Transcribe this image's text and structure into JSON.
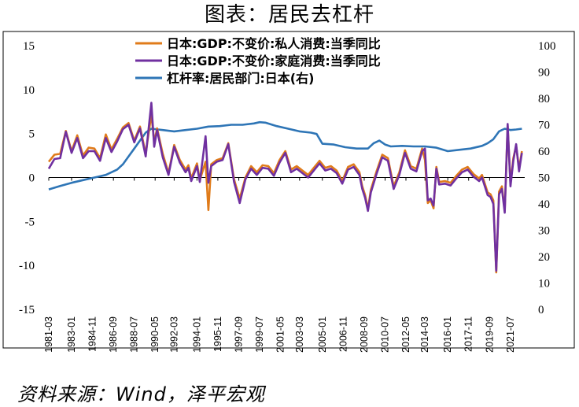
{
  "title": "图表：居民去杠杆",
  "source": "资料来源：Wind，泽平宏观",
  "chart_data": {
    "type": "line",
    "x_tick_labels": [
      "1981-03",
      "1983-01",
      "1984-11",
      "1986-09",
      "1988-07",
      "1990-05",
      "1992-03",
      "1994-01",
      "1995-11",
      "1997-09",
      "1999-07",
      "2001-05",
      "2003-03",
      "2005-01",
      "2006-11",
      "2008-09",
      "2010-07",
      "2012-05",
      "2014-03",
      "2016-01",
      "2017-11",
      "2019-09",
      "2021-07"
    ],
    "x_tick_years": [
      1981.0,
      1983.0,
      1984.83,
      1986.67,
      1988.5,
      1990.33,
      1992.0,
      1994.0,
      1995.83,
      1997.67,
      1999.5,
      2001.33,
      2003.0,
      2005.0,
      2006.83,
      2008.67,
      2010.5,
      2012.33,
      2014.0,
      2016.0,
      2017.83,
      2019.67,
      2021.5
    ],
    "x_range": [
      1981.0,
      2022.75
    ],
    "left_axis": {
      "ylim": [
        -15,
        15
      ],
      "ticks": [
        -15,
        -10,
        -5,
        0,
        5,
        10,
        15
      ]
    },
    "right_axis": {
      "ylim": [
        0,
        100
      ],
      "ticks": [
        0,
        10,
        20,
        30,
        40,
        50,
        60,
        70,
        80,
        90,
        100
      ]
    },
    "legend_placement": "top-center",
    "series": [
      {
        "name": "日本:GDP:不变价:私人消费:当季同比",
        "axis": "left",
        "color": "#E07B1A",
        "points": [
          [
            1981.0,
            1.8
          ],
          [
            1981.5,
            2.6
          ],
          [
            1982.0,
            2.7
          ],
          [
            1982.5,
            5.3
          ],
          [
            1983.0,
            3.0
          ],
          [
            1983.5,
            4.8
          ],
          [
            1984.0,
            2.5
          ],
          [
            1984.5,
            3.4
          ],
          [
            1985.0,
            3.3
          ],
          [
            1985.5,
            2.2
          ],
          [
            1986.0,
            4.9
          ],
          [
            1986.5,
            3.2
          ],
          [
            1987.0,
            4.4
          ],
          [
            1987.5,
            5.7
          ],
          [
            1988.0,
            6.2
          ],
          [
            1988.5,
            4.2
          ],
          [
            1989.0,
            5.8
          ],
          [
            1989.5,
            2.7
          ],
          [
            1990.0,
            7.2
          ],
          [
            1990.25,
            4.0
          ],
          [
            1990.5,
            5.6
          ],
          [
            1991.0,
            2.7
          ],
          [
            1991.5,
            0.5
          ],
          [
            1992.0,
            3.7
          ],
          [
            1992.5,
            2.0
          ],
          [
            1993.0,
            0.9
          ],
          [
            1993.25,
            1.4
          ],
          [
            1993.5,
            -0.1
          ],
          [
            1994.0,
            1.6
          ],
          [
            1994.25,
            -0.3
          ],
          [
            1994.75,
            1.8
          ],
          [
            1995.0,
            -3.7
          ],
          [
            1995.25,
            1.5
          ],
          [
            1995.75,
            2.0
          ],
          [
            1996.25,
            2.2
          ],
          [
            1996.75,
            3.9
          ],
          [
            1997.25,
            -0.2
          ],
          [
            1997.75,
            -2.4
          ],
          [
            1998.25,
            0.0
          ],
          [
            1998.75,
            1.3
          ],
          [
            1999.25,
            0.6
          ],
          [
            1999.75,
            1.4
          ],
          [
            2000.25,
            1.3
          ],
          [
            2000.75,
            0.5
          ],
          [
            2001.25,
            2.0
          ],
          [
            2001.75,
            3.0
          ],
          [
            2002.25,
            0.9
          ],
          [
            2002.75,
            1.3
          ],
          [
            2003.25,
            0.8
          ],
          [
            2003.75,
            0.3
          ],
          [
            2004.25,
            1.1
          ],
          [
            2004.75,
            1.9
          ],
          [
            2005.25,
            1.1
          ],
          [
            2005.75,
            1.3
          ],
          [
            2006.25,
            0.8
          ],
          [
            2006.75,
            -0.4
          ],
          [
            2007.25,
            1.2
          ],
          [
            2007.75,
            1.5
          ],
          [
            2008.25,
            0.6
          ],
          [
            2008.5,
            -1.0
          ],
          [
            2008.75,
            -2.0
          ],
          [
            2009.0,
            -3.6
          ],
          [
            2009.25,
            -1.4
          ],
          [
            2009.75,
            0.7
          ],
          [
            2010.25,
            2.6
          ],
          [
            2010.75,
            2.2
          ],
          [
            2011.25,
            -1.0
          ],
          [
            2011.75,
            0.6
          ],
          [
            2012.25,
            3.1
          ],
          [
            2012.75,
            1.3
          ],
          [
            2013.25,
            1.0
          ],
          [
            2013.75,
            3.3
          ],
          [
            2014.0,
            2.0
          ],
          [
            2014.25,
            -2.9
          ],
          [
            2014.5,
            -2.6
          ],
          [
            2014.75,
            -3.5
          ],
          [
            2015.0,
            1.2
          ],
          [
            2015.25,
            -0.5
          ],
          [
            2015.75,
            -0.4
          ],
          [
            2016.25,
            -0.6
          ],
          [
            2016.75,
            0.2
          ],
          [
            2017.25,
            0.9
          ],
          [
            2017.75,
            1.2
          ],
          [
            2018.25,
            0.4
          ],
          [
            2018.75,
            -0.1
          ],
          [
            2019.0,
            0.3
          ],
          [
            2019.5,
            -1.7
          ],
          [
            2019.75,
            -1.9
          ],
          [
            2020.0,
            -2.6
          ],
          [
            2020.25,
            -10.8
          ],
          [
            2020.5,
            -1.6
          ],
          [
            2020.75,
            -1.0
          ],
          [
            2021.0,
            -3.8
          ],
          [
            2021.25,
            5.9
          ],
          [
            2021.5,
            -0.7
          ],
          [
            2021.75,
            2.2
          ],
          [
            2022.0,
            3.6
          ],
          [
            2022.25,
            1.0
          ],
          [
            2022.5,
            3.0
          ]
        ]
      },
      {
        "name": "日本:GDP:不变价:家庭消费:当季同比",
        "axis": "left",
        "color": "#7030A0",
        "points": [
          [
            1981.0,
            1.0
          ],
          [
            1981.5,
            2.1
          ],
          [
            1982.0,
            2.2
          ],
          [
            1982.5,
            5.2
          ],
          [
            1983.0,
            2.8
          ],
          [
            1983.5,
            4.5
          ],
          [
            1984.0,
            2.2
          ],
          [
            1984.5,
            3.0
          ],
          [
            1985.0,
            3.0
          ],
          [
            1985.5,
            1.9
          ],
          [
            1986.0,
            4.5
          ],
          [
            1986.5,
            2.9
          ],
          [
            1987.0,
            4.1
          ],
          [
            1987.5,
            5.5
          ],
          [
            1988.0,
            6.0
          ],
          [
            1988.5,
            4.0
          ],
          [
            1989.0,
            5.6
          ],
          [
            1989.5,
            2.4
          ],
          [
            1990.0,
            8.5
          ],
          [
            1990.25,
            3.5
          ],
          [
            1990.5,
            5.4
          ],
          [
            1991.0,
            2.3
          ],
          [
            1991.5,
            0.3
          ],
          [
            1992.0,
            3.5
          ],
          [
            1992.5,
            1.7
          ],
          [
            1993.0,
            0.6
          ],
          [
            1993.25,
            1.1
          ],
          [
            1993.5,
            -0.4
          ],
          [
            1994.0,
            1.3
          ],
          [
            1994.25,
            -0.5
          ],
          [
            1994.75,
            4.7
          ],
          [
            1995.0,
            -0.6
          ],
          [
            1995.25,
            1.3
          ],
          [
            1995.75,
            1.8
          ],
          [
            1996.25,
            2.0
          ],
          [
            1996.75,
            3.8
          ],
          [
            1997.25,
            -0.5
          ],
          [
            1997.75,
            -2.9
          ],
          [
            1998.25,
            -0.2
          ],
          [
            1998.75,
            1.0
          ],
          [
            1999.25,
            0.3
          ],
          [
            1999.75,
            1.1
          ],
          [
            2000.25,
            1.0
          ],
          [
            2000.75,
            0.2
          ],
          [
            2001.25,
            1.7
          ],
          [
            2001.75,
            2.8
          ],
          [
            2002.25,
            0.6
          ],
          [
            2002.75,
            1.0
          ],
          [
            2003.25,
            0.5
          ],
          [
            2003.75,
            0.0
          ],
          [
            2004.25,
            0.8
          ],
          [
            2004.75,
            1.6
          ],
          [
            2005.25,
            0.8
          ],
          [
            2005.75,
            1.0
          ],
          [
            2006.25,
            0.5
          ],
          [
            2006.75,
            -0.7
          ],
          [
            2007.25,
            0.9
          ],
          [
            2007.75,
            1.2
          ],
          [
            2008.25,
            0.3
          ],
          [
            2008.5,
            -1.3
          ],
          [
            2008.75,
            -2.3
          ],
          [
            2009.0,
            -3.8
          ],
          [
            2009.25,
            -1.7
          ],
          [
            2009.75,
            0.4
          ],
          [
            2010.25,
            2.3
          ],
          [
            2010.75,
            1.9
          ],
          [
            2011.25,
            -1.3
          ],
          [
            2011.75,
            0.3
          ],
          [
            2012.25,
            2.8
          ],
          [
            2012.75,
            1.0
          ],
          [
            2013.25,
            0.7
          ],
          [
            2013.75,
            3.0
          ],
          [
            2014.0,
            3.3
          ],
          [
            2014.25,
            -2.6
          ],
          [
            2014.5,
            -2.4
          ],
          [
            2014.75,
            -3.2
          ],
          [
            2015.0,
            1.0
          ],
          [
            2015.25,
            -0.8
          ],
          [
            2015.75,
            -0.7
          ],
          [
            2016.25,
            -0.9
          ],
          [
            2016.75,
            -0.1
          ],
          [
            2017.25,
            0.6
          ],
          [
            2017.75,
            0.9
          ],
          [
            2018.25,
            0.1
          ],
          [
            2018.75,
            -0.4
          ],
          [
            2019.0,
            0.0
          ],
          [
            2019.5,
            -2.0
          ],
          [
            2019.75,
            -2.2
          ],
          [
            2020.0,
            -3.0
          ],
          [
            2020.25,
            -10.6
          ],
          [
            2020.5,
            -1.9
          ],
          [
            2020.75,
            -1.3
          ],
          [
            2021.0,
            -4.0
          ],
          [
            2021.25,
            6.1
          ],
          [
            2021.5,
            -1.0
          ],
          [
            2021.75,
            1.9
          ],
          [
            2022.0,
            3.8
          ],
          [
            2022.25,
            0.7
          ],
          [
            2022.5,
            2.8
          ]
        ]
      },
      {
        "name": "杠杆率:居民部门:日本(右)",
        "axis": "right",
        "color": "#2E75B6",
        "points": [
          [
            1981.0,
            45.5
          ],
          [
            1982.0,
            46.8
          ],
          [
            1983.0,
            48.0
          ],
          [
            1984.0,
            49.0
          ],
          [
            1985.0,
            50.0
          ],
          [
            1986.0,
            51.0
          ],
          [
            1987.0,
            53.0
          ],
          [
            1987.5,
            55.0
          ],
          [
            1988.0,
            58.0
          ],
          [
            1988.5,
            61.0
          ],
          [
            1989.0,
            64.0
          ],
          [
            1989.5,
            67.0
          ],
          [
            1990.0,
            68.5
          ],
          [
            1991.0,
            68.0
          ],
          [
            1992.0,
            67.5
          ],
          [
            1993.0,
            68.0
          ],
          [
            1994.0,
            68.5
          ],
          [
            1995.0,
            69.3
          ],
          [
            1996.0,
            69.5
          ],
          [
            1997.0,
            70.0
          ],
          [
            1998.0,
            70.0
          ],
          [
            1999.0,
            70.5
          ],
          [
            1999.5,
            71.0
          ],
          [
            2000.0,
            70.8
          ],
          [
            2001.0,
            69.5
          ],
          [
            2002.0,
            68.5
          ],
          [
            2003.0,
            67.5
          ],
          [
            2004.0,
            67.0
          ],
          [
            2004.5,
            66.5
          ],
          [
            2005.0,
            62.8
          ],
          [
            2006.0,
            62.5
          ],
          [
            2007.0,
            61.5
          ],
          [
            2008.0,
            61.0
          ],
          [
            2009.0,
            61.0
          ],
          [
            2009.5,
            63.0
          ],
          [
            2010.0,
            64.0
          ],
          [
            2010.5,
            62.5
          ],
          [
            2011.0,
            61.8
          ],
          [
            2012.0,
            62.0
          ],
          [
            2013.0,
            61.8
          ],
          [
            2014.0,
            61.8
          ],
          [
            2015.0,
            61.3
          ],
          [
            2016.0,
            60.0
          ],
          [
            2017.0,
            60.5
          ],
          [
            2018.0,
            61.0
          ],
          [
            2019.0,
            62.0
          ],
          [
            2019.5,
            63.0
          ],
          [
            2020.0,
            64.5
          ],
          [
            2020.5,
            67.5
          ],
          [
            2021.0,
            68.5
          ],
          [
            2021.5,
            68.0
          ],
          [
            2022.0,
            68.2
          ],
          [
            2022.5,
            68.5
          ]
        ]
      }
    ]
  }
}
